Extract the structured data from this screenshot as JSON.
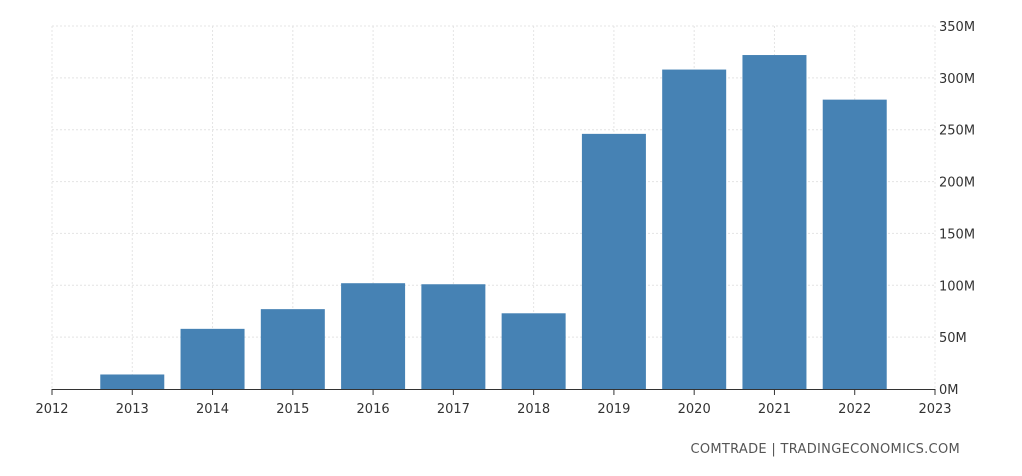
{
  "chart_data": {
    "type": "bar",
    "categories": [
      "2013",
      "2014",
      "2015",
      "2016",
      "2017",
      "2018",
      "2019",
      "2020",
      "2021",
      "2022"
    ],
    "values": [
      14000000,
      58000000,
      77000000,
      102000000,
      101000000,
      73000000,
      246000000,
      308000000,
      322000000,
      279000000
    ],
    "x_tick_labels": [
      "2012",
      "2013",
      "2014",
      "2015",
      "2016",
      "2017",
      "2018",
      "2019",
      "2020",
      "2021",
      "2022",
      "2023"
    ],
    "y_tick_labels": [
      "0M",
      "50M",
      "100M",
      "150M",
      "200M",
      "250M",
      "300M",
      "350M"
    ],
    "ylim": [
      0,
      350000000
    ],
    "y_axis_side": "right",
    "grid": true,
    "bar_color": "#4682b4",
    "title": "",
    "xlabel": "",
    "ylabel": ""
  },
  "source_text": "COMTRADE | TRADINGECONOMICS.COM"
}
